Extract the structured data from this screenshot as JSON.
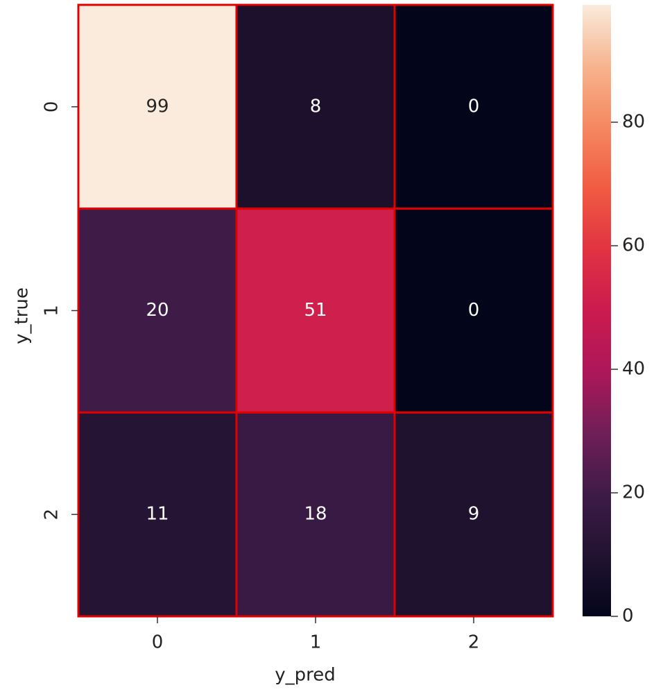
{
  "chart_data": {
    "type": "heatmap",
    "x_label": "y_pred",
    "y_label": "y_true",
    "x_categories": [
      "0",
      "1",
      "2"
    ],
    "y_categories": [
      "0",
      "1",
      "2"
    ],
    "values": [
      [
        99,
        8,
        0
      ],
      [
        20,
        51,
        0
      ],
      [
        11,
        18,
        9
      ]
    ],
    "colorbar_lim": [
      0,
      99
    ],
    "colorbar_ticks": [
      0,
      20,
      40,
      60,
      80
    ],
    "colormap": [
      "#03051a",
      "#221331",
      "#3e1b48",
      "#701f57",
      "#ad1759",
      "#cb1b4f",
      "#e13342",
      "#f05b42",
      "#f58860",
      "#f6b48e",
      "#faebdd"
    ],
    "line_color": "#e00000"
  }
}
